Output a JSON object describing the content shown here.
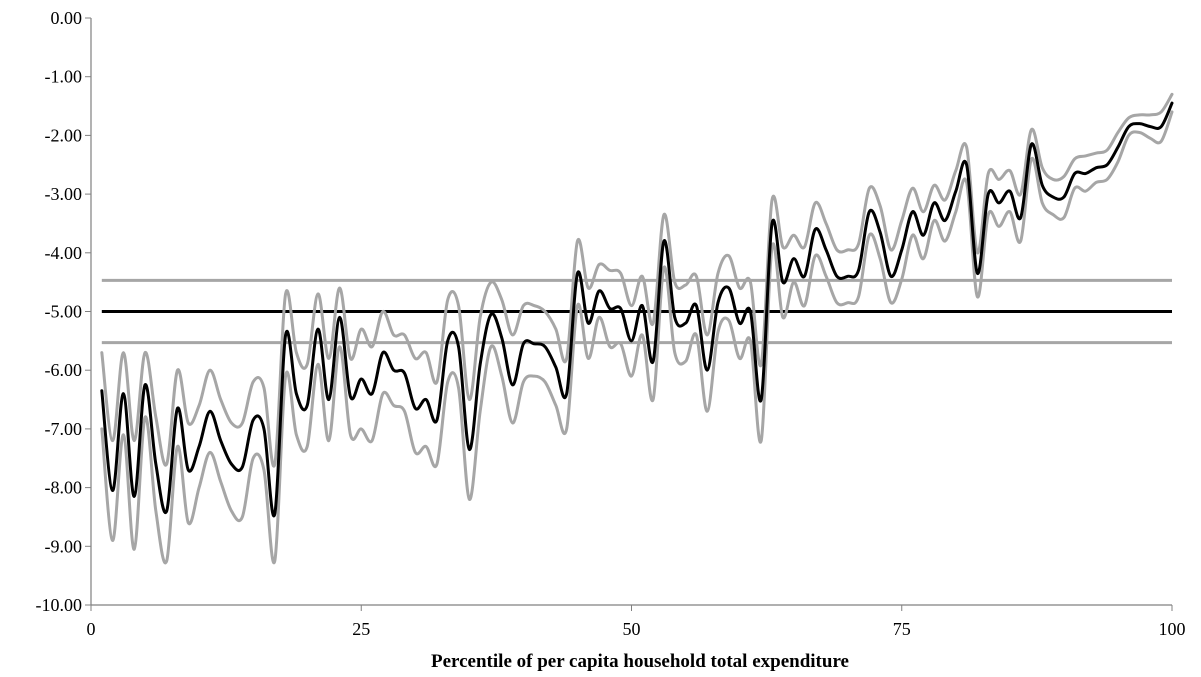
{
  "chart_data": {
    "type": "line",
    "title": "",
    "xlabel": "Percentile of per capita household total expenditure",
    "ylabel": "",
    "xlim": [
      0,
      100
    ],
    "ylim": [
      -10,
      0
    ],
    "x_ticks": [
      0,
      25,
      50,
      75,
      100
    ],
    "x_tick_labels": [
      "0",
      "25",
      "50",
      "75",
      "100"
    ],
    "y_ticks": [
      0,
      -1,
      -2,
      -3,
      -4,
      -5,
      -6,
      -7,
      -8,
      -9,
      -10
    ],
    "y_tick_labels": [
      "0.00",
      "-1.00",
      "-2.00",
      "-3.00",
      "-4.00",
      "-5.00",
      "-6.00",
      "-7.00",
      "-8.00",
      "-9.00",
      "-10.00"
    ],
    "grid": false,
    "legend": "none",
    "colors": {
      "estimate": "#000000",
      "band": "#a6a6a6"
    },
    "horizontal_lines": [
      {
        "role": "estimate",
        "y": -5.0
      },
      {
        "role": "upper",
        "y": -4.47
      },
      {
        "role": "lower",
        "y": -5.53
      }
    ],
    "series": [
      {
        "role": "estimate",
        "x": [
          1,
          2,
          3,
          4,
          5,
          6,
          7,
          8,
          9,
          10,
          11,
          12,
          13,
          14,
          15,
          16,
          17,
          18,
          19,
          20,
          21,
          22,
          23,
          24,
          25,
          26,
          27,
          28,
          29,
          30,
          31,
          32,
          33,
          34,
          35,
          36,
          37,
          38,
          39,
          40,
          41,
          42,
          43,
          44,
          45,
          46,
          47,
          48,
          49,
          50,
          51,
          52,
          53,
          54,
          55,
          56,
          57,
          58,
          59,
          60,
          61,
          62,
          63,
          64,
          65,
          66,
          67,
          68,
          69,
          70,
          71,
          72,
          73,
          74,
          75,
          76,
          77,
          78,
          79,
          80,
          81,
          82,
          83,
          84,
          85,
          86,
          87,
          88,
          89,
          90,
          91,
          92,
          93,
          94,
          95,
          96,
          97,
          98,
          99,
          100
        ],
        "y": [
          -6.35,
          -8.05,
          -6.4,
          -8.15,
          -6.25,
          -7.6,
          -8.4,
          -6.65,
          -7.7,
          -7.3,
          -6.7,
          -7.2,
          -7.6,
          -7.65,
          -6.85,
          -7.0,
          -8.45,
          -5.4,
          -6.4,
          -6.6,
          -5.3,
          -6.5,
          -5.1,
          -6.45,
          -6.15,
          -6.4,
          -5.7,
          -6.0,
          -6.05,
          -6.65,
          -6.5,
          -6.85,
          -5.5,
          -5.6,
          -7.35,
          -5.9,
          -5.05,
          -5.45,
          -6.25,
          -5.55,
          -5.55,
          -5.6,
          -5.95,
          -6.4,
          -4.35,
          -5.2,
          -4.65,
          -4.95,
          -4.95,
          -5.5,
          -4.9,
          -5.85,
          -3.8,
          -5.1,
          -5.2,
          -4.9,
          -6.0,
          -4.85,
          -4.6,
          -5.2,
          -5.0,
          -6.5,
          -3.5,
          -4.5,
          -4.1,
          -4.4,
          -3.6,
          -3.95,
          -4.4,
          -4.4,
          -4.3,
          -3.3,
          -3.65,
          -4.4,
          -3.95,
          -3.3,
          -3.7,
          -3.15,
          -3.45,
          -2.95,
          -2.5,
          -4.35,
          -3.0,
          -3.15,
          -2.95,
          -3.4,
          -2.15,
          -2.85,
          -3.05,
          -3.05,
          -2.65,
          -2.65,
          -2.55,
          -2.5,
          -2.2,
          -1.85,
          -1.8,
          -1.85,
          -1.85,
          -1.45
        ]
      },
      {
        "role": "upper",
        "x": [
          1,
          2,
          3,
          4,
          5,
          6,
          7,
          8,
          9,
          10,
          11,
          12,
          13,
          14,
          15,
          16,
          17,
          18,
          19,
          20,
          21,
          22,
          23,
          24,
          25,
          26,
          27,
          28,
          29,
          30,
          31,
          32,
          33,
          34,
          35,
          36,
          37,
          38,
          39,
          40,
          41,
          42,
          43,
          44,
          45,
          46,
          47,
          48,
          49,
          50,
          51,
          52,
          53,
          54,
          55,
          56,
          57,
          58,
          59,
          60,
          61,
          62,
          63,
          64,
          65,
          66,
          67,
          68,
          69,
          70,
          71,
          72,
          73,
          74,
          75,
          76,
          77,
          78,
          79,
          80,
          81,
          82,
          83,
          84,
          85,
          86,
          87,
          88,
          89,
          90,
          91,
          92,
          93,
          94,
          95,
          96,
          97,
          98,
          99,
          100
        ],
        "y": [
          -5.7,
          -7.2,
          -5.7,
          -7.2,
          -5.7,
          -6.8,
          -7.6,
          -6.0,
          -6.9,
          -6.6,
          -6.0,
          -6.5,
          -6.9,
          -6.9,
          -6.2,
          -6.3,
          -7.6,
          -4.7,
          -5.7,
          -5.9,
          -4.7,
          -5.8,
          -4.6,
          -5.8,
          -5.3,
          -5.6,
          -5.0,
          -5.4,
          -5.4,
          -5.8,
          -5.7,
          -6.2,
          -4.8,
          -4.9,
          -6.5,
          -5.1,
          -4.5,
          -4.8,
          -5.4,
          -4.9,
          -4.9,
          -5.0,
          -5.3,
          -5.8,
          -3.8,
          -4.6,
          -4.2,
          -4.3,
          -4.35,
          -4.9,
          -4.4,
          -5.2,
          -3.35,
          -4.5,
          -4.55,
          -4.4,
          -5.4,
          -4.35,
          -4.05,
          -4.6,
          -4.5,
          -5.9,
          -3.1,
          -3.9,
          -3.7,
          -3.9,
          -3.15,
          -3.5,
          -3.95,
          -3.95,
          -3.85,
          -2.9,
          -3.2,
          -3.95,
          -3.45,
          -2.9,
          -3.3,
          -2.85,
          -3.1,
          -2.6,
          -2.2,
          -4.0,
          -2.65,
          -2.75,
          -2.6,
          -3.0,
          -1.9,
          -2.55,
          -2.75,
          -2.7,
          -2.4,
          -2.35,
          -2.3,
          -2.25,
          -1.95,
          -1.7,
          -1.65,
          -1.65,
          -1.6,
          -1.3
        ]
      },
      {
        "role": "lower",
        "x": [
          1,
          2,
          3,
          4,
          5,
          6,
          7,
          8,
          9,
          10,
          11,
          12,
          13,
          14,
          15,
          16,
          17,
          18,
          19,
          20,
          21,
          22,
          23,
          24,
          25,
          26,
          27,
          28,
          29,
          30,
          31,
          32,
          33,
          34,
          35,
          36,
          37,
          38,
          39,
          40,
          41,
          42,
          43,
          44,
          45,
          46,
          47,
          48,
          49,
          50,
          51,
          52,
          53,
          54,
          55,
          56,
          57,
          58,
          59,
          60,
          61,
          62,
          63,
          64,
          65,
          66,
          67,
          68,
          69,
          70,
          71,
          72,
          73,
          74,
          75,
          76,
          77,
          78,
          79,
          80,
          81,
          82,
          83,
          84,
          85,
          86,
          87,
          88,
          89,
          90,
          91,
          92,
          93,
          94,
          95,
          96,
          97,
          98,
          99,
          100
        ],
        "y": [
          -7.0,
          -8.9,
          -7.1,
          -9.05,
          -6.8,
          -8.4,
          -9.25,
          -7.3,
          -8.6,
          -8.0,
          -7.4,
          -7.9,
          -8.4,
          -8.5,
          -7.5,
          -7.7,
          -9.25,
          -6.1,
          -7.1,
          -7.3,
          -5.9,
          -7.2,
          -5.6,
          -7.1,
          -7.0,
          -7.2,
          -6.4,
          -6.6,
          -6.7,
          -7.4,
          -7.3,
          -7.6,
          -6.2,
          -6.3,
          -8.2,
          -6.7,
          -5.6,
          -6.1,
          -6.9,
          -6.2,
          -6.1,
          -6.2,
          -6.6,
          -7.0,
          -4.9,
          -5.8,
          -5.1,
          -5.6,
          -5.55,
          -6.1,
          -5.4,
          -6.5,
          -4.25,
          -5.7,
          -5.85,
          -5.4,
          -6.7,
          -5.35,
          -5.15,
          -5.8,
          -5.5,
          -7.2,
          -3.9,
          -5.1,
          -4.5,
          -4.9,
          -4.05,
          -4.4,
          -4.85,
          -4.85,
          -4.75,
          -3.7,
          -4.1,
          -4.85,
          -4.45,
          -3.7,
          -4.1,
          -3.45,
          -3.8,
          -3.3,
          -2.8,
          -4.75,
          -3.35,
          -3.55,
          -3.3,
          -3.8,
          -2.4,
          -3.15,
          -3.35,
          -3.4,
          -2.9,
          -2.95,
          -2.8,
          -2.75,
          -2.45,
          -2.0,
          -1.95,
          -2.05,
          -2.1,
          -1.6
        ]
      }
    ]
  }
}
